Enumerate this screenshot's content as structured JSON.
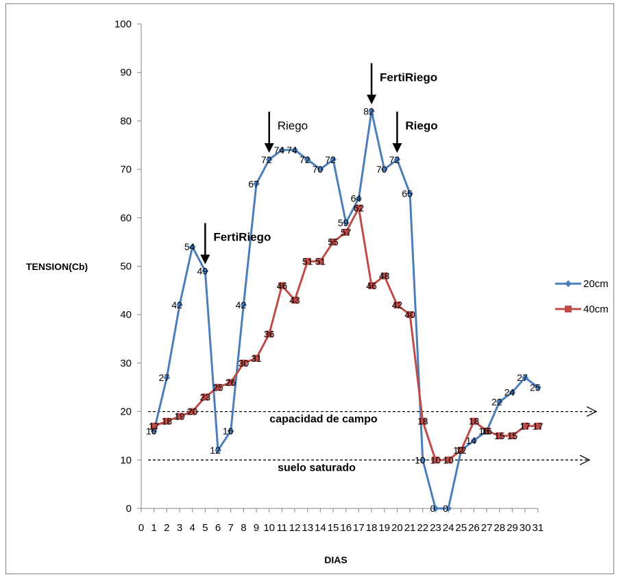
{
  "chart_data": {
    "type": "line",
    "title": "",
    "xlabel": "DIAS",
    "ylabel": "TENSION(Cb)",
    "ylim": [
      0,
      100
    ],
    "yticks": [
      0,
      10,
      20,
      30,
      40,
      50,
      60,
      70,
      80,
      90,
      100
    ],
    "x_categories": [
      "0",
      "1",
      "2",
      "3",
      "4",
      "5",
      "6",
      "7",
      "8",
      "9",
      "10",
      "11",
      "12",
      "13",
      "14",
      "15",
      "16",
      "17",
      "18",
      "19",
      "20",
      "21",
      "22",
      "23",
      "24",
      "25",
      "26",
      "27",
      "28",
      "29",
      "30",
      "31"
    ],
    "legend_position": "right",
    "grid": false,
    "series": [
      {
        "name": "20cm",
        "color": "#4a7ebb",
        "marker": "diamond",
        "x": [
          1,
          2,
          3,
          4,
          5,
          6,
          7,
          8,
          9,
          10,
          11,
          12,
          13,
          14,
          15,
          16,
          17,
          18,
          19,
          20,
          21,
          22,
          23,
          24,
          25,
          26,
          27,
          28,
          29,
          30,
          31
        ],
        "values": [
          16,
          27,
          42,
          54,
          49,
          12,
          16,
          42,
          67,
          72,
          74,
          74,
          72,
          70,
          72,
          59,
          64,
          82,
          70,
          72,
          65,
          10,
          0,
          0,
          12,
          14,
          16,
          22,
          24,
          27,
          25
        ]
      },
      {
        "name": "40cm",
        "color": "#be4b48",
        "marker": "square",
        "x": [
          1,
          2,
          3,
          4,
          5,
          6,
          7,
          8,
          9,
          10,
          11,
          12,
          13,
          14,
          15,
          16,
          17,
          18,
          19,
          20,
          21,
          22,
          23,
          24,
          25,
          26,
          27,
          28,
          29,
          30,
          31
        ],
        "values": [
          17,
          18,
          19,
          20,
          23,
          25,
          26,
          30,
          31,
          36,
          46,
          43,
          51,
          51,
          55,
          57,
          62,
          46,
          48,
          42,
          40,
          18,
          10,
          10,
          12,
          18,
          16,
          15,
          15,
          17,
          17
        ]
      }
    ],
    "reference_lines": [
      {
        "label": "capacidad de campo",
        "value": 20
      },
      {
        "label": "suelo saturado",
        "value": 10
      }
    ],
    "annotations": [
      {
        "text": "FertiRiego",
        "x": 5,
        "arrow_tip": 49,
        "bold": true
      },
      {
        "text": "Riego",
        "x": 10,
        "arrow_tip": 72,
        "bold": false
      },
      {
        "text": "FertiRiego",
        "x": 18,
        "arrow_tip": 82,
        "bold": true
      },
      {
        "text": "Riego",
        "x": 20,
        "arrow_tip": 72,
        "bold": true
      }
    ]
  }
}
